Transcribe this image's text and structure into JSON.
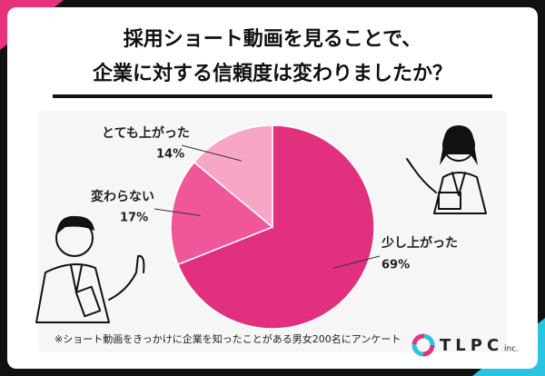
{
  "chart_data": {
    "type": "pie",
    "title": [
      "採用ショート動画を見ることで、",
      "企業に対する信頼度は変わりましたか？"
    ],
    "categories": [
      "少し上がった",
      "変わらない",
      "とても上がった"
    ],
    "values": [
      69,
      17,
      14
    ],
    "value_labels": [
      "69%",
      "17%",
      "14%"
    ],
    "colors": [
      "#e0307e",
      "#f0569a",
      "#f7a6c6"
    ],
    "footnote": "※ショート動画をきっかけに企業を知ったことがある男女200名にアンケート",
    "logo": "TLPC",
    "logo_suffix": "inc."
  }
}
